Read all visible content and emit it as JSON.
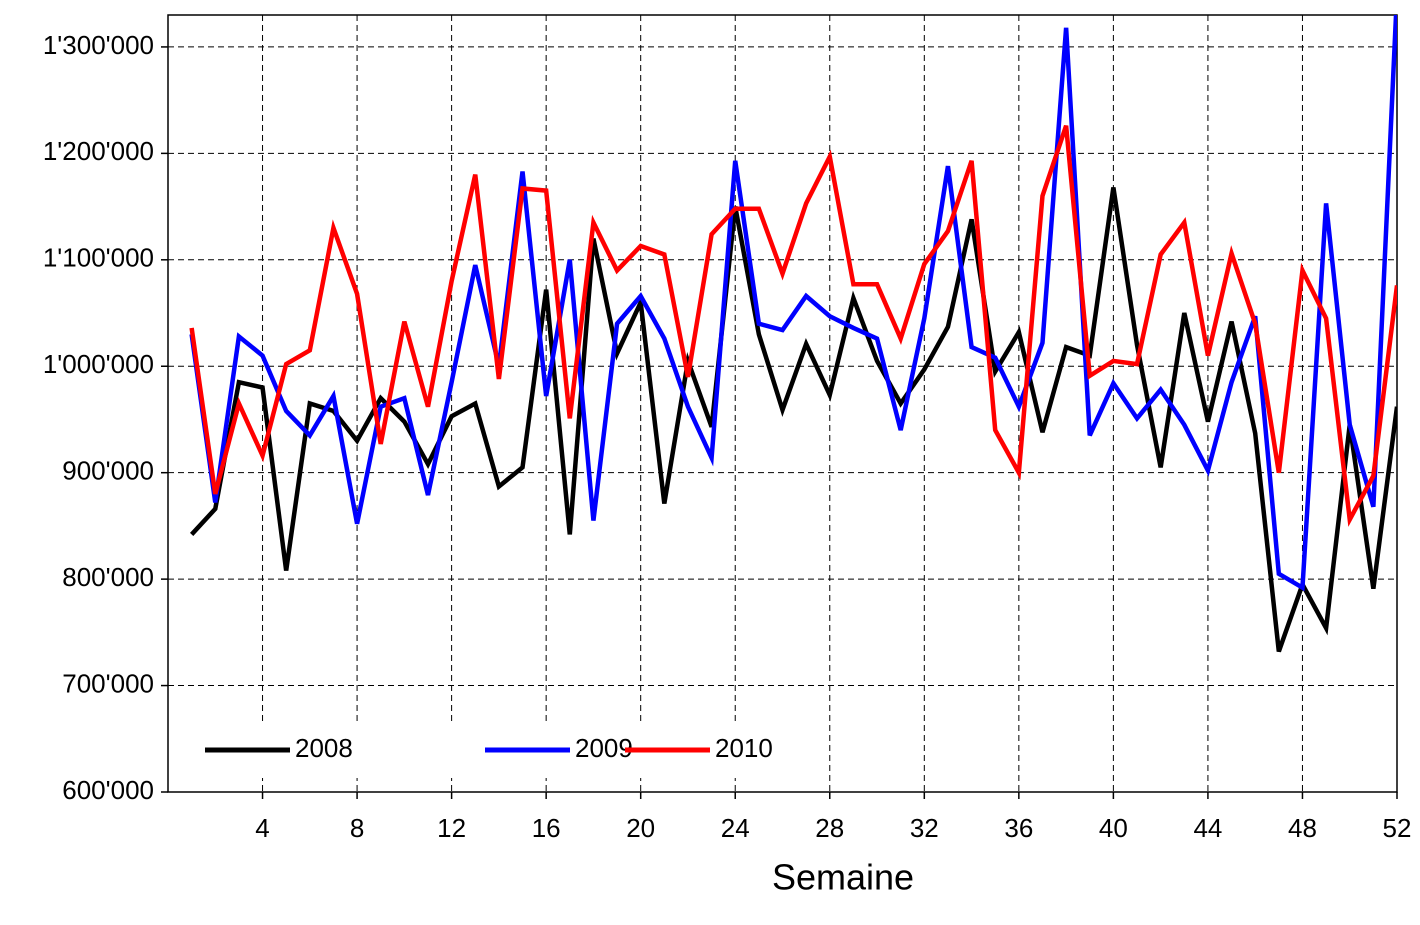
{
  "chart_data": {
    "type": "line",
    "x_label": "Semaine",
    "x": [
      1,
      2,
      3,
      4,
      5,
      6,
      7,
      8,
      9,
      10,
      11,
      12,
      13,
      14,
      15,
      16,
      17,
      18,
      19,
      20,
      21,
      22,
      23,
      24,
      25,
      26,
      27,
      28,
      29,
      30,
      31,
      32,
      33,
      34,
      35,
      36,
      37,
      38,
      39,
      40,
      41,
      42,
      43,
      44,
      45,
      46,
      47,
      48,
      49,
      50,
      51,
      52
    ],
    "series": [
      {
        "name": "2008",
        "color": "#000000",
        "values": [
          842000,
          866000,
          985000,
          980000,
          808000,
          965000,
          958000,
          930000,
          970000,
          948000,
          908000,
          953000,
          965000,
          887000,
          905000,
          1072000,
          842000,
          1120000,
          1012000,
          1060000,
          871000,
          1005000,
          943000,
          1150000,
          1030000,
          959000,
          1021000,
          973000,
          1064000,
          1005000,
          965000,
          997000,
          1037000,
          1138000,
          995000,
          1032000,
          938000,
          1018000,
          1010000,
          1168000,
          1020000,
          905000,
          1050000,
          948000,
          1042000,
          937000,
          732000,
          795000,
          754000,
          945000,
          791000,
          962000
        ]
      },
      {
        "name": "2009",
        "color": "#0000ff",
        "values": [
          1030000,
          872000,
          1028000,
          1010000,
          958000,
          935000,
          972000,
          852000,
          962000,
          970000,
          879000,
          985000,
          1095000,
          1000000,
          1183000,
          972000,
          1100000,
          855000,
          1040000,
          1066000,
          1026000,
          962000,
          914000,
          1193000,
          1040000,
          1034000,
          1066000,
          1047000,
          1036000,
          1026000,
          940000,
          1045000,
          1188000,
          1018000,
          1008000,
          962000,
          1022000,
          1318000,
          935000,
          984000,
          951000,
          978000,
          945000,
          902000,
          985000,
          1047000,
          805000,
          792000,
          1153000,
          945000,
          868000,
          1350000
        ]
      },
      {
        "name": "2010",
        "color": "#ff0000",
        "values": [
          1036000,
          880000,
          965000,
          916000,
          1002000,
          1015000,
          1130000,
          1068000,
          927000,
          1042000,
          962000,
          1080000,
          1180000,
          988000,
          1167000,
          1165000,
          951000,
          1135000,
          1090000,
          1113000,
          1105000,
          990000,
          1124000,
          1148000,
          1148000,
          1087000,
          1153000,
          1197000,
          1077000,
          1077000,
          1026000,
          1096000,
          1127000,
          1193000,
          940000,
          900000,
          1160000,
          1226000,
          991000,
          1005000,
          1002000,
          1105000,
          1135000,
          1010000,
          1106000,
          1040000,
          900000,
          1090000,
          1045000,
          856000,
          897000,
          1076000
        ]
      }
    ],
    "xlim": [
      0,
      52
    ],
    "xticks": [
      4,
      8,
      12,
      16,
      20,
      24,
      28,
      32,
      36,
      40,
      44,
      48,
      52
    ],
    "ylim": [
      600000,
      1330000
    ],
    "yticks": [
      {
        "value": 600000,
        "label": "600'000"
      },
      {
        "value": 700000,
        "label": "700'000"
      },
      {
        "value": 800000,
        "label": "800'000"
      },
      {
        "value": 900000,
        "label": "900'000"
      },
      {
        "value": 1000000,
        "label": "1'000'000"
      },
      {
        "value": 1100000,
        "label": "1'100'000"
      },
      {
        "value": 1200000,
        "label": "1'200'000"
      },
      {
        "value": 1300000,
        "label": "1'300'000"
      }
    ],
    "grid": true,
    "legend": "lower left"
  }
}
